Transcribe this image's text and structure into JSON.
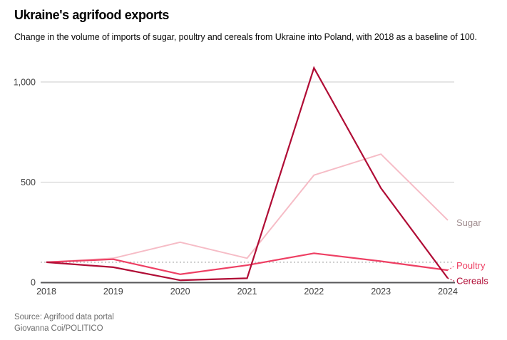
{
  "header": {
    "title": "Ukraine's agrifood exports",
    "subtitle": "Change in the volume of imports of sugar, poultry and cereals from Ukraine into Poland, with 2018 as a baseline of 100."
  },
  "footer": {
    "source": "Source: Agrifood data portal",
    "credit": "Giovanna Coi/POLITICO"
  },
  "colors": {
    "sugar_line": "#f6bcc6",
    "sugar_label": "#a18e90",
    "poultry_line": "#ee3f63",
    "cereals_line": "#b00c35",
    "gridline": "#cbcbcb",
    "baseline_dotted": "#ababab",
    "axis": "#58585a",
    "tick_text": "#3d3d3d"
  },
  "chart_data": {
    "type": "line",
    "title": "Ukraine's agrifood exports",
    "x": [
      "2018",
      "2019",
      "2020",
      "2021",
      "2022",
      "2023",
      "2024"
    ],
    "series": [
      {
        "name": "Sugar",
        "color": "#f6bcc6",
        "label_color": "#a18e90",
        "label_leader": false,
        "values": [
          100,
          120,
          200,
          120,
          535,
          640,
          310
        ]
      },
      {
        "name": "Poultry",
        "color": "#ee3f63",
        "label_color": "#ee3f63",
        "label_leader": true,
        "values": [
          100,
          115,
          40,
          85,
          145,
          105,
          60
        ]
      },
      {
        "name": "Cereals",
        "color": "#b00c35",
        "label_color": "#b00c35",
        "label_leader": true,
        "values": [
          100,
          75,
          10,
          20,
          1070,
          470,
          20
        ]
      }
    ],
    "baseline": {
      "value": 100,
      "style": "dotted"
    },
    "y_ticks": [
      {
        "value": 0,
        "label": "0"
      },
      {
        "value": 500,
        "label": "500"
      },
      {
        "value": 1000,
        "label": "1,000"
      }
    ],
    "ylim": [
      0,
      1100
    ],
    "xlabel": "",
    "ylabel": "",
    "grid": "horizontal",
    "legend_position": "right-of-line-ends"
  }
}
